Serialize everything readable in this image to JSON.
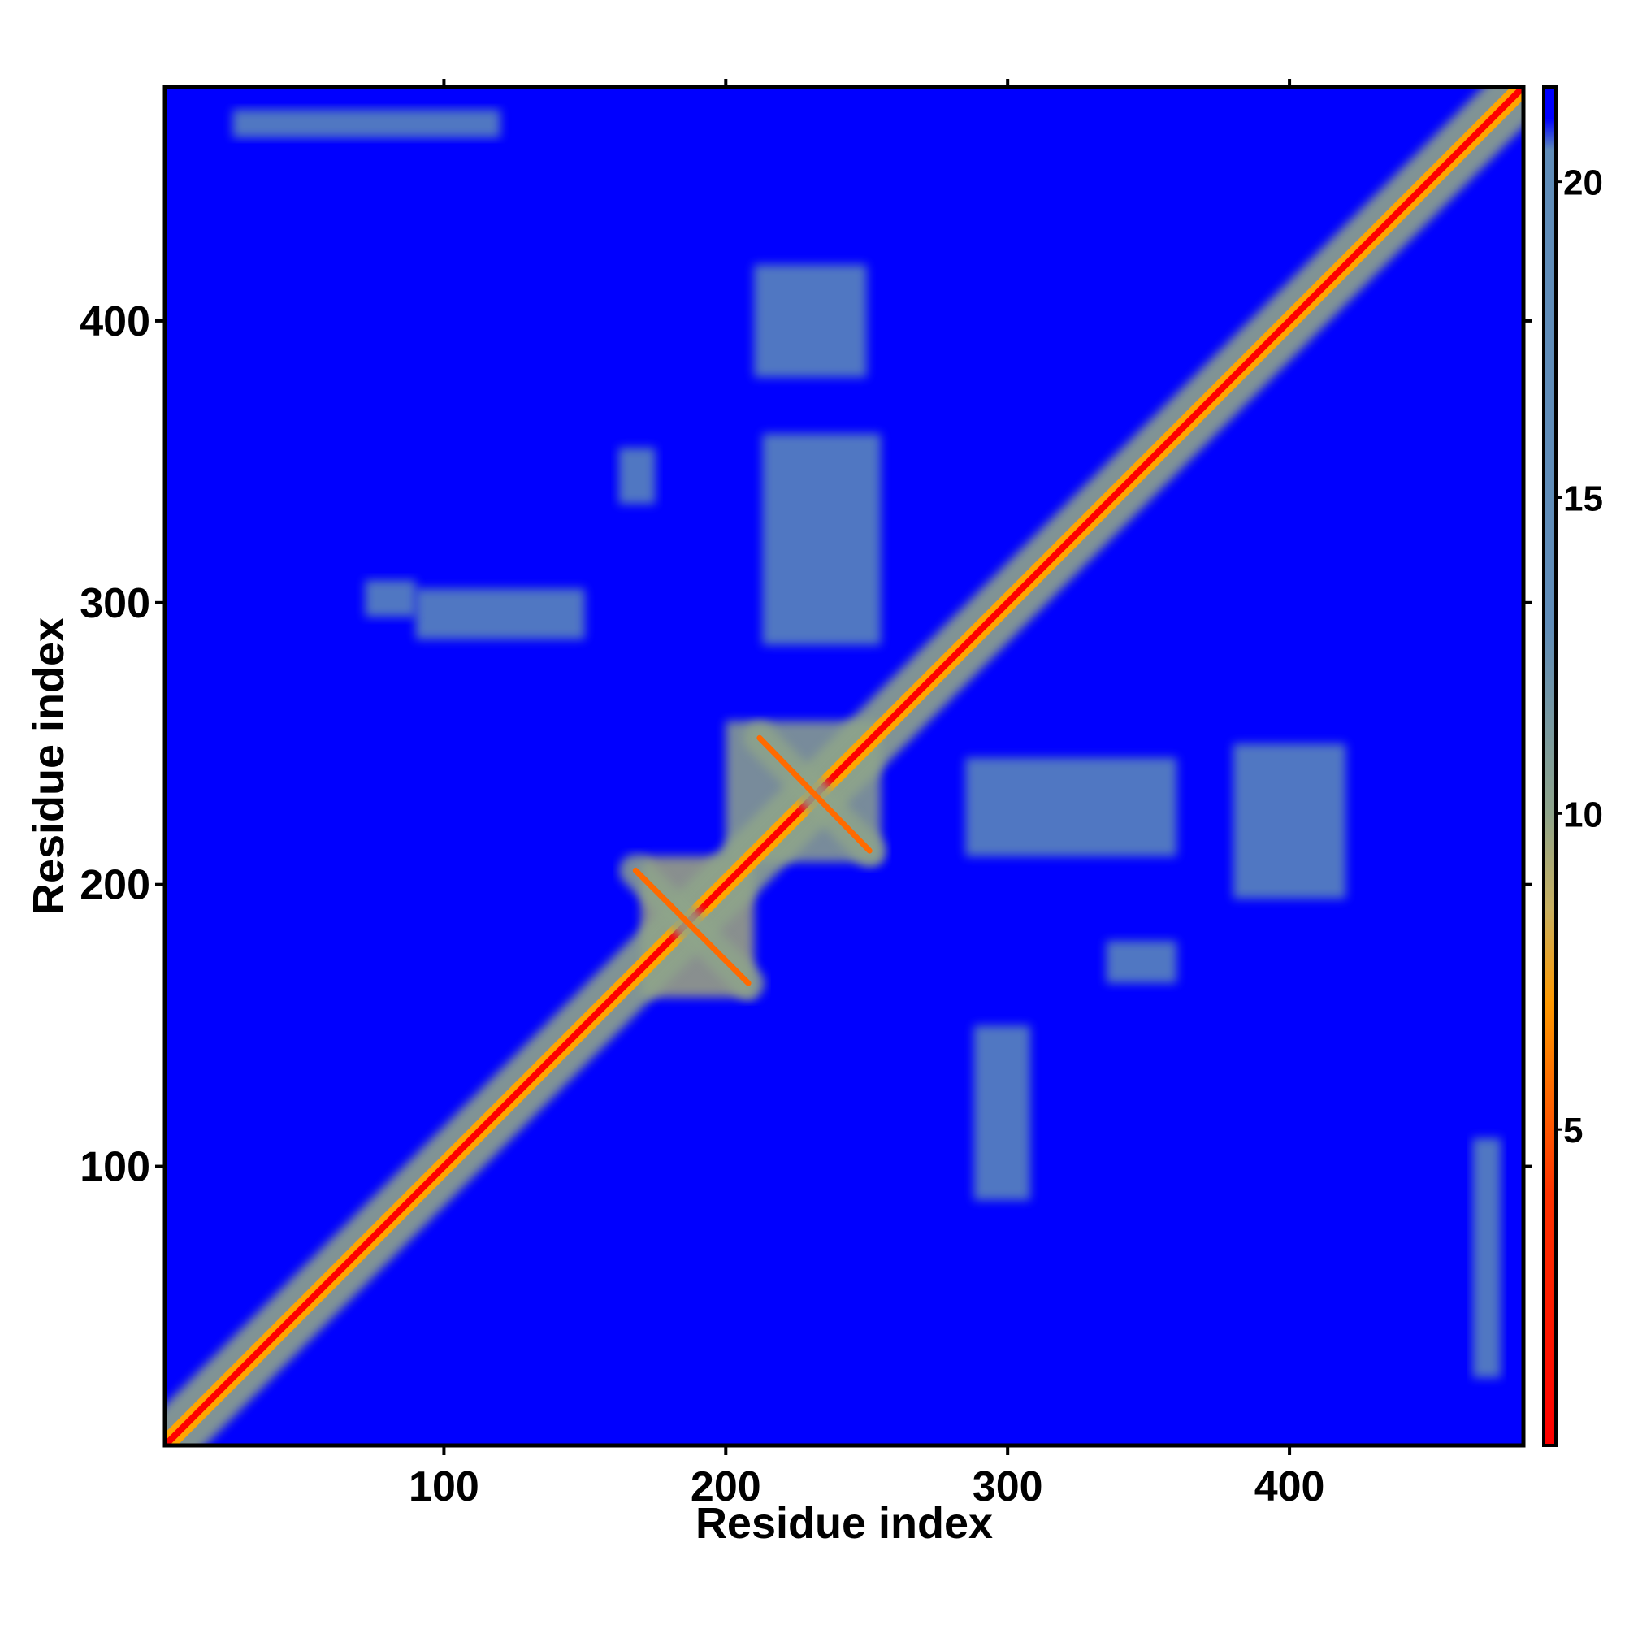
{
  "chart_data": {
    "type": "heatmap",
    "title": "",
    "xlabel": "Residue index",
    "ylabel": "Residue index",
    "x_range": [
      1,
      483
    ],
    "y_range": [
      1,
      483
    ],
    "x_ticks": [
      100,
      200,
      300,
      400
    ],
    "y_ticks": [
      100,
      200,
      300,
      400
    ],
    "x_tick_labels": [
      "100",
      "200",
      "300",
      "400"
    ],
    "y_tick_labels": [
      "100",
      "200",
      "300",
      "400"
    ],
    "grid": false,
    "legend": "colorbar-right",
    "colorbar": {
      "range": [
        0,
        21.5
      ],
      "ticks": [
        5,
        10,
        15,
        20
      ],
      "tick_labels": [
        "5",
        "10",
        "15",
        "20"
      ],
      "stops": [
        {
          "value": 0,
          "color": "#ff0000"
        },
        {
          "value": 4,
          "color": "#ff3300"
        },
        {
          "value": 7,
          "color": "#ff9900"
        },
        {
          "value": 8.5,
          "color": "#c8b060"
        },
        {
          "value": 10,
          "color": "#8ea48a"
        },
        {
          "value": 13,
          "color": "#5f8cb8"
        },
        {
          "value": 20.5,
          "color": "#5f8cb8"
        },
        {
          "value": 21,
          "color": "#0000ff"
        }
      ]
    },
    "background": {
      "value": 21.5,
      "color": "#0000ff"
    },
    "diagonal": {
      "from": 1,
      "to": 483,
      "core_color": "#ff0000",
      "halo_color": "#ffa500",
      "shell_color": "#8ea48a"
    },
    "line_features": [
      {
        "x0": 168,
        "y0": 205,
        "x1": 208,
        "y1": 165,
        "color": "#ff6a00"
      },
      {
        "x0": 212,
        "y0": 252,
        "x1": 251,
        "y1": 212,
        "color": "#ff6a00"
      }
    ],
    "regions": [
      {
        "x": [
          170,
          210
        ],
        "y": [
          160,
          210
        ],
        "value": 9.5
      },
      {
        "x": [
          200,
          255
        ],
        "y": [
          208,
          258
        ],
        "value": 10
      },
      {
        "x": [
          90,
          150
        ],
        "y": [
          287,
          305
        ],
        "value": 17
      },
      {
        "x": [
          72,
          90
        ],
        "y": [
          295,
          308
        ],
        "value": 18
      },
      {
        "x": [
          288,
          308
        ],
        "y": [
          88,
          150
        ],
        "value": 17
      },
      {
        "x": [
          335,
          360
        ],
        "y": [
          165,
          180
        ],
        "value": 17
      },
      {
        "x": [
          162,
          175
        ],
        "y": [
          335,
          355
        ],
        "value": 17
      },
      {
        "x": [
          285,
          360
        ],
        "y": [
          210,
          245
        ],
        "value": 18.5
      },
      {
        "x": [
          213,
          255
        ],
        "y": [
          285,
          360
        ],
        "value": 18.5
      },
      {
        "x": [
          380,
          420
        ],
        "y": [
          195,
          250
        ],
        "value": 19
      },
      {
        "x": [
          210,
          250
        ],
        "y": [
          380,
          420
        ],
        "value": 19
      },
      {
        "x": [
          25,
          120
        ],
        "y": [
          465,
          475
        ],
        "value": 19.5
      },
      {
        "x": [
          465,
          475
        ],
        "y": [
          25,
          110
        ],
        "value": 19.5
      }
    ]
  }
}
